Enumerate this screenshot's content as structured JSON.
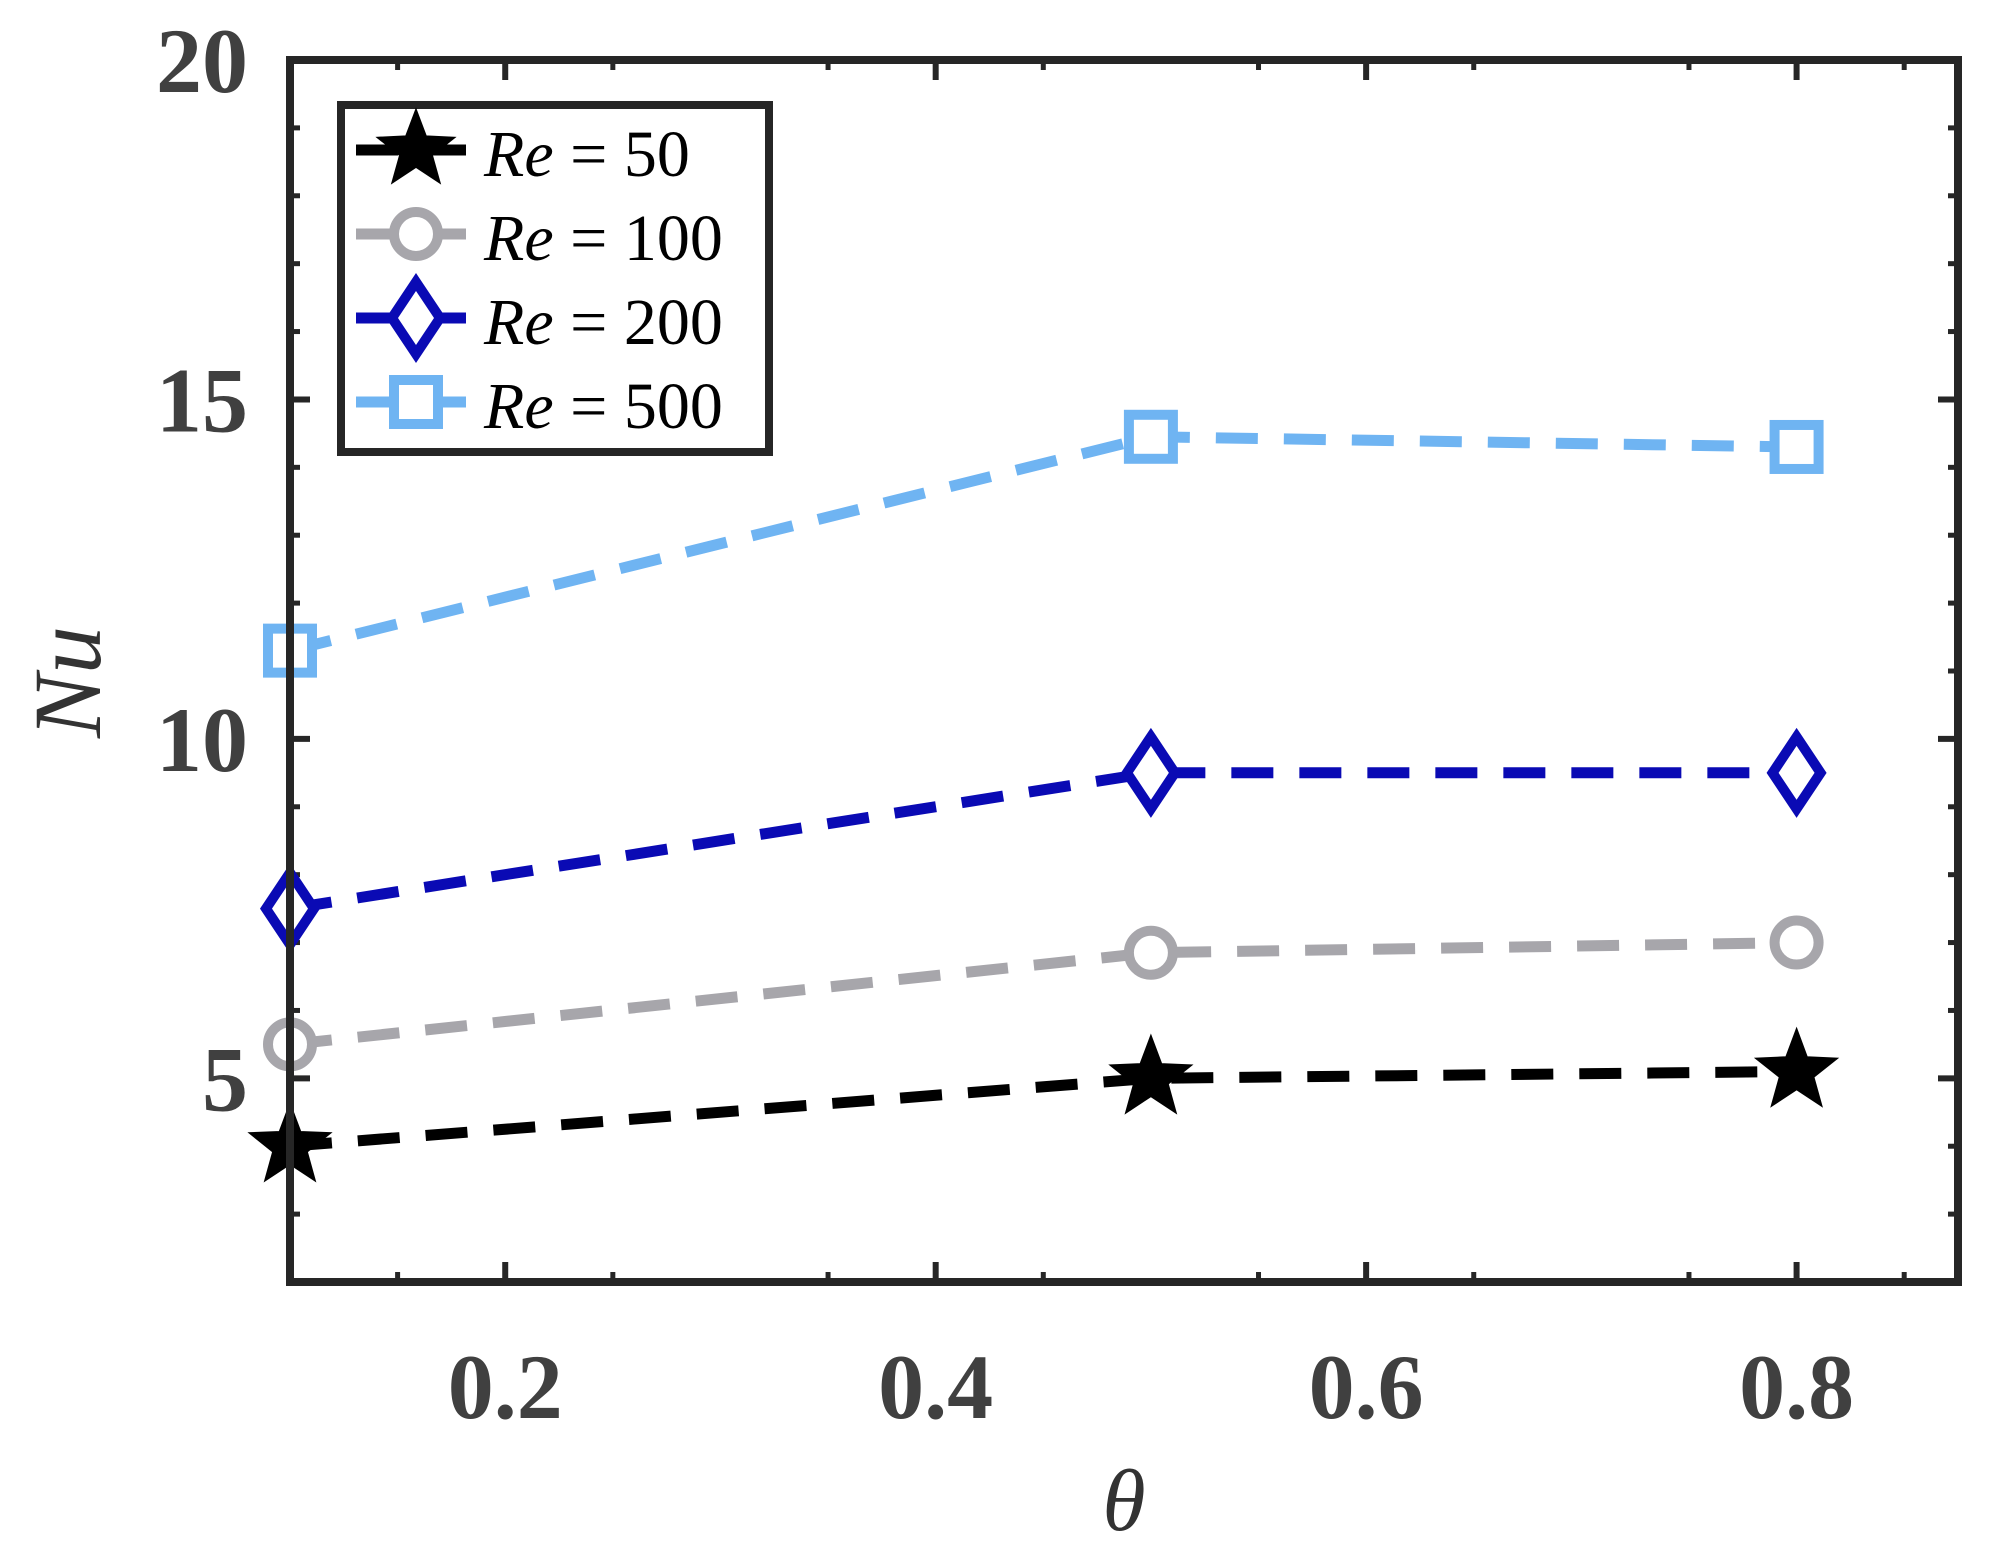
{
  "chart_data": {
    "type": "line",
    "title": "",
    "xlabel": "θ",
    "ylabel": "Nu",
    "xlim": [
      0.1,
      0.875
    ],
    "ylim": [
      2,
      20
    ],
    "xticks": [
      0.2,
      0.4,
      0.6,
      0.8
    ],
    "xtick_labels": [
      "0.2",
      "0.4",
      "0.6",
      "0.8"
    ],
    "yticks": [
      5,
      10,
      15,
      20
    ],
    "ytick_labels": [
      "5",
      "10",
      "15",
      "20"
    ],
    "grid": false,
    "legend_position": "top-left",
    "x": [
      0.1,
      0.5,
      0.8
    ],
    "series": [
      {
        "name": "Re = 50",
        "legend_var": "Re",
        "legend_value": "50",
        "marker": "star",
        "color": "#000000",
        "values": [
          4.0,
          5.0,
          5.1
        ]
      },
      {
        "name": "Re = 100",
        "legend_var": "Re",
        "legend_value": "100",
        "marker": "circle",
        "color": "#A7A6AB",
        "values": [
          5.5,
          6.85,
          7.0
        ]
      },
      {
        "name": "Re = 200",
        "legend_var": "Re",
        "legend_value": "200",
        "marker": "diamond",
        "color": "#0A0AB4",
        "values": [
          7.5,
          9.5,
          9.5
        ]
      },
      {
        "name": "Re = 500",
        "legend_var": "Re",
        "legend_value": "500",
        "marker": "square",
        "color": "#6FB4F2",
        "values": [
          11.3,
          14.45,
          14.3
        ]
      }
    ]
  }
}
